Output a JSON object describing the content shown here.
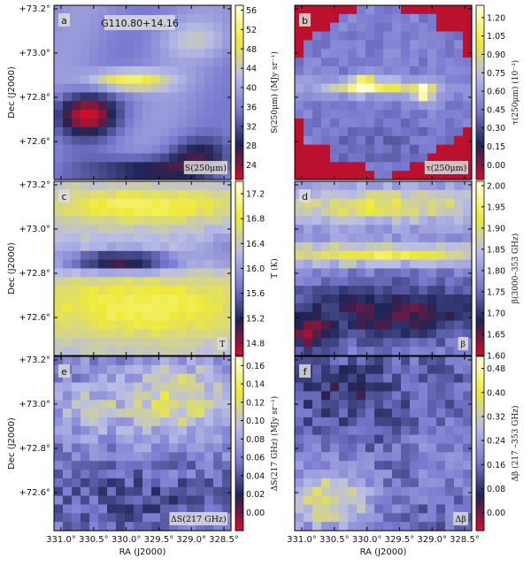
{
  "chart_data": [
    {
      "type": "heatmap",
      "panel_letter": "a",
      "field_name": "G110.80+14.16",
      "map_label": "S(250μm)",
      "colorbar_label": "S(250μm) (MJy sr⁻¹)",
      "colorbar_ticks": [
        24,
        28,
        32,
        36,
        40,
        44,
        48,
        52,
        56
      ],
      "colorbar_range": [
        21,
        57
      ],
      "ylabel": "Dec (J2000)",
      "yticks": [
        "+73.2°",
        "+73.0°",
        "+72.8°",
        "+72.6°"
      ],
      "colormap": [
        "#cc0f2a",
        "#1e2455",
        "#7a7ad0",
        "#b8bce6",
        "#eeea3a",
        "#ffffd0"
      ]
    },
    {
      "type": "heatmap",
      "panel_letter": "b",
      "map_label": "τ(250μm)",
      "colorbar_label": "τ(250μm) (10⁻³)",
      "colorbar_ticks": [
        0.0,
        0.15,
        0.3,
        0.45,
        0.6,
        0.75,
        0.9,
        1.05,
        1.2
      ],
      "colorbar_tick_labels": [
        "0.00",
        "0.15",
        "0.30",
        "0.45",
        "0.60",
        "0.75",
        "0.90",
        "1.05",
        "1.20"
      ],
      "colorbar_range": [
        -0.12,
        1.3
      ],
      "colormap": [
        "#cc0f2a",
        "#1e2455",
        "#7a7ad0",
        "#b8bce6",
        "#eeea3a",
        "#ffffd0"
      ]
    },
    {
      "type": "heatmap",
      "panel_letter": "c",
      "map_label": "T",
      "colorbar_label": "T (K)",
      "colorbar_ticks": [
        14.8,
        15.2,
        15.6,
        16.0,
        16.4,
        16.8,
        17.2
      ],
      "colorbar_tick_labels": [
        "14.8",
        "15.2",
        "15.6",
        "16.0",
        "16.4",
        "16.8",
        "17.2"
      ],
      "colorbar_range": [
        14.6,
        17.4
      ],
      "ylabel": "Dec (J2000)",
      "yticks": [
        "+73.2°",
        "+73.0°",
        "+72.8°",
        "+72.6°"
      ],
      "colormap": [
        "#cc0f2a",
        "#1e2455",
        "#7a7ad0",
        "#b8bce6",
        "#eeea3a",
        "#ffffd0"
      ]
    },
    {
      "type": "heatmap",
      "panel_letter": "d",
      "map_label": "β",
      "colorbar_label": "β(3000–353 GHz)",
      "colorbar_ticks": [
        1.6,
        1.65,
        1.7,
        1.75,
        1.8,
        1.85,
        1.9,
        1.95,
        2.0
      ],
      "colorbar_tick_labels": [
        "1.60",
        "1.65",
        "1.70",
        "1.75",
        "1.80",
        "1.85",
        "1.90",
        "1.95",
        "2.00"
      ],
      "colorbar_range": [
        1.6,
        2.01
      ],
      "colormap": [
        "#cc0f2a",
        "#1e2455",
        "#7a7ad0",
        "#b8bce6",
        "#eeea3a",
        "#ffffd0"
      ]
    },
    {
      "type": "heatmap",
      "panel_letter": "e",
      "map_label": "ΔS(217 GHz)",
      "colorbar_label": "ΔS(217 GHz) (MJy sr⁻¹)",
      "colorbar_ticks": [
        0.0,
        0.02,
        0.04,
        0.06,
        0.08,
        0.1,
        0.12,
        0.14,
        0.16
      ],
      "colorbar_tick_labels": [
        "0.00",
        "0.02",
        "0.04",
        "0.06",
        "0.08",
        "0.10",
        "0.12",
        "0.14",
        "0.16"
      ],
      "colorbar_range": [
        -0.02,
        0.17
      ],
      "ylabel": "Dec (J2000)",
      "yticks": [
        "+73.2°",
        "+73.0°",
        "+72.8°",
        "+72.6°"
      ],
      "xlabel": "RA (J2000)",
      "xticks": [
        "331.0°",
        "330.5°",
        "330.0°",
        "329.5°",
        "329.0°",
        "328.5°"
      ],
      "colormap": [
        "#cc0f2a",
        "#1e2455",
        "#7a7ad0",
        "#b8bce6",
        "#eeea3a",
        "#ffffd0"
      ]
    },
    {
      "type": "heatmap",
      "panel_letter": "f",
      "map_label": "Δβ",
      "colorbar_label": "Δβ (217 –353 GHz)",
      "colorbar_ticks": [
        0.0,
        0.08,
        0.16,
        0.24,
        0.32,
        0.4,
        0.48
      ],
      "colorbar_tick_labels": [
        "0.00",
        "0.08",
        "0.16",
        "0.24",
        "0.32",
        "0.40",
        "0.48"
      ],
      "colorbar_range": [
        -0.06,
        0.52
      ],
      "xlabel": "RA (J2000)",
      "xticks": [
        "331.0°",
        "330.5°",
        "330.0°",
        "329.5°",
        "329.0°",
        "328.5°"
      ],
      "colormap": [
        "#cc0f2a",
        "#1e2455",
        "#7a7ad0",
        "#b8bce6",
        "#eeea3a",
        "#ffffd0"
      ]
    }
  ]
}
